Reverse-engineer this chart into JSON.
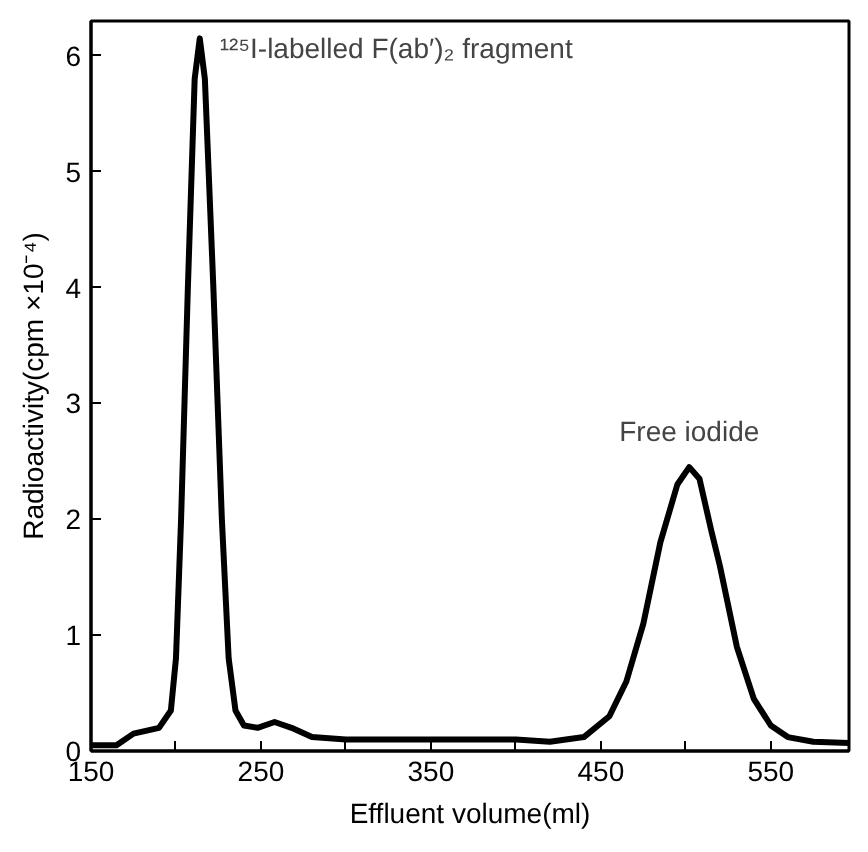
{
  "chart_data": {
    "type": "line",
    "xlabel": "Effluent volume(ml)",
    "ylabel": "Radioactivity(cpm ×10⁻⁴)",
    "x": [
      150,
      165,
      175,
      190,
      197,
      200,
      203,
      207,
      211,
      214,
      217,
      222,
      227,
      231,
      235,
      240,
      248,
      258,
      268,
      280,
      300,
      350,
      400,
      420,
      440,
      455,
      465,
      475,
      485,
      495,
      502,
      508,
      515,
      520,
      530,
      540,
      550,
      560,
      575,
      596
    ],
    "series": [
      {
        "color": "#000000",
        "values": [
          0.05,
          0.05,
          0.15,
          0.2,
          0.35,
          0.8,
          2.0,
          4.0,
          5.8,
          6.15,
          5.8,
          4.0,
          2.0,
          0.8,
          0.35,
          0.22,
          0.2,
          0.25,
          0.2,
          0.12,
          0.1,
          0.1,
          0.1,
          0.08,
          0.12,
          0.3,
          0.6,
          1.1,
          1.8,
          2.3,
          2.45,
          2.35,
          1.9,
          1.6,
          0.9,
          0.45,
          0.22,
          0.12,
          0.08,
          0.07
        ]
      }
    ],
    "xlim": [
      150,
      596
    ],
    "ylim": [
      0,
      6.3
    ],
    "xticks": [
      150,
      {
        "value": 200,
        "label": null
      },
      250,
      {
        "value": 300,
        "label": null
      },
      350,
      {
        "value": 400,
        "label": null
      },
      450,
      {
        "value": 500,
        "label": null
      },
      550
    ],
    "yticks": [
      0,
      1,
      2,
      3,
      4,
      5,
      6
    ],
    "annotations": [
      {
        "text": "¹²⁵I-labelled F(ab′)₂ fragment",
        "x": 214,
        "y": 6.15
      },
      {
        "text": "Free iodide",
        "x": 502,
        "y": 2.45
      }
    ],
    "grid": false,
    "marker": "none",
    "line_style": "solid"
  }
}
